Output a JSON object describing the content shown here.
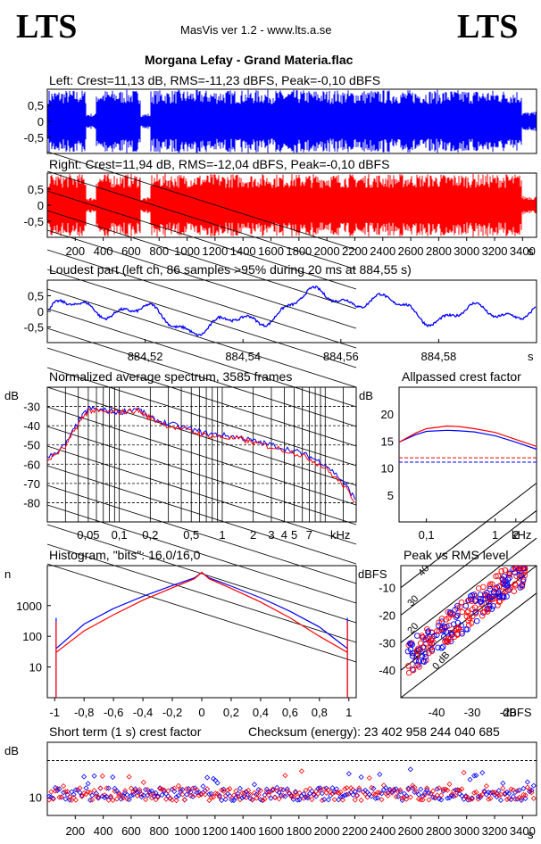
{
  "app": {
    "logo_left": "LTS",
    "logo_right": "LTS",
    "header": "MasVis ver 1.2 - www.lts.a.se",
    "track": "Morgana Lefay - Grand Materia.flac"
  },
  "colors": {
    "left": "#0000ff",
    "right": "#ff0000",
    "grid": "#000000"
  },
  "chart_data": [
    {
      "type": "area",
      "title": "Left: Crest=11,13 dB, RMS=-11,23 dBFS, Peak=-0,10 dBFS",
      "channel": "left",
      "ylim": [
        -1,
        1
      ],
      "ytick_labels": [
        "0,5",
        "0",
        "-0,5"
      ],
      "yticks": [
        0.5,
        0,
        -0.5
      ]
    },
    {
      "type": "area",
      "title": "Right: Crest=11,94 dB, RMS=-12,04 dBFS, Peak=-0,10 dBFS",
      "channel": "right",
      "ylim": [
        -1,
        1
      ],
      "ytick_labels": [
        "0,5",
        "0",
        "-0,5"
      ],
      "yticks": [
        0.5,
        0,
        -0.5
      ],
      "xlim": [
        0,
        3500
      ],
      "xtick_labels": [
        "200",
        "400",
        "600",
        "800",
        "1000",
        "1200",
        "1400",
        "1600",
        "1800",
        "2000",
        "2200",
        "2400",
        "2600",
        "2800",
        "3000",
        "3200",
        "3400"
      ],
      "xticks": [
        200,
        400,
        600,
        800,
        1000,
        1200,
        1400,
        1600,
        1800,
        2000,
        2200,
        2400,
        2600,
        2800,
        3000,
        3200,
        3400
      ],
      "xunit": "s"
    },
    {
      "type": "line",
      "title": "Loudest part (left  ch, 86 samples >95% during 20 ms at 884,55 s)",
      "xlim": [
        884.5,
        884.6
      ],
      "ylim": [
        -1,
        1
      ],
      "xtick_labels": [
        "884,52",
        "884,54",
        "884,56",
        "884,58"
      ],
      "xticks": [
        884.52,
        884.54,
        884.56,
        884.58
      ],
      "xunit": "s",
      "ytick_labels": [
        "0,5",
        "0",
        "-0,5"
      ],
      "yticks": [
        0.5,
        0,
        -0.5
      ]
    },
    {
      "type": "line",
      "title": "Normalized average spectrum, 3585 frames",
      "ylabel": "dB",
      "xunit": "kHz",
      "xscale": "log",
      "xlim": [
        0.02,
        20
      ],
      "ylim": [
        -90,
        -20
      ],
      "ytick_labels": [
        "-30",
        "-40",
        "-50",
        "-60",
        "-70",
        "-80"
      ],
      "yticks": [
        -30,
        -40,
        -50,
        -60,
        -70,
        -80
      ],
      "xtick_labels": [
        "0,05",
        "0,1",
        "0,2",
        "0,5",
        "1",
        "2",
        "3",
        "4",
        "5",
        "7"
      ],
      "xticks": [
        0.05,
        0.1,
        0.2,
        0.5,
        1,
        2,
        3,
        4,
        5,
        7
      ],
      "x": [
        0.02,
        0.03,
        0.04,
        0.05,
        0.07,
        0.1,
        0.15,
        0.2,
        0.3,
        0.5,
        0.7,
        1,
        1.5,
        2,
        3,
        5,
        7,
        10,
        15,
        20
      ],
      "series": [
        {
          "values": [
            -57,
            -50,
            -38,
            -31,
            -32,
            -33,
            -31,
            -36,
            -39,
            -42,
            -44,
            -45,
            -46,
            -48,
            -50,
            -53,
            -56,
            -60,
            -69,
            -79
          ]
        },
        {
          "values": [
            -58,
            -51,
            -39,
            -32,
            -33,
            -33,
            -32,
            -36,
            -40,
            -43,
            -45,
            -46,
            -47,
            -49,
            -51,
            -54,
            -57,
            -62,
            -71,
            -80
          ]
        }
      ]
    },
    {
      "type": "line",
      "title": "Allpassed crest factor",
      "ylabel": "dB",
      "xunit": "kHz",
      "xscale": "log",
      "xlim": [
        0.04,
        4
      ],
      "ylim": [
        0,
        25
      ],
      "ytick_labels": [
        "20",
        "15",
        "10",
        "5"
      ],
      "yticks": [
        20,
        15,
        10,
        5
      ],
      "xtick_labels": [
        "0,1",
        "1",
        "2"
      ],
      "xticks": [
        0.1,
        1,
        2
      ],
      "x": [
        0.04,
        0.07,
        0.1,
        0.2,
        0.3,
        0.5,
        1,
        2,
        4
      ],
      "series": [
        {
          "values": [
            14.8,
            16.2,
            16.8,
            17.0,
            16.9,
            16.7,
            16.0,
            14.8,
            13.5
          ]
        },
        {
          "values": [
            14.8,
            16.5,
            17.3,
            17.8,
            17.7,
            17.3,
            16.6,
            15.3,
            14.0
          ]
        }
      ],
      "hlines": [
        11.1,
        11.9
      ]
    },
    {
      "type": "line",
      "title": "Histogram, \"bits\": 16,0/16,0",
      "ylabel": "n",
      "yscale": "log",
      "ylim": [
        1,
        20000
      ],
      "ytick_labels": [
        "1000",
        "100",
        "10"
      ],
      "yticks": [
        1000,
        100,
        10
      ],
      "xlim": [
        -1.05,
        1.05
      ],
      "xtick_labels": [
        "-1",
        "-0,8",
        "-0,6",
        "-0,4",
        "-0,2",
        "0",
        "0,2",
        "0,4",
        "0,6",
        "0,8",
        "1"
      ],
      "xticks": [
        -1,
        -0.8,
        -0.6,
        -0.4,
        -0.2,
        0,
        0.2,
        0.4,
        0.6,
        0.8,
        1
      ],
      "x": [
        -0.99,
        -0.8,
        -0.6,
        -0.4,
        -0.2,
        -0.05,
        0,
        0.05,
        0.2,
        0.4,
        0.6,
        0.8,
        0.99
      ],
      "series": [
        {
          "values": [
            40,
            250,
            800,
            2000,
            4500,
            8000,
            12000,
            8000,
            4300,
            1800,
            650,
            200,
            40
          ]
        },
        {
          "values": [
            30,
            150,
            500,
            1500,
            3800,
            7500,
            12000,
            7500,
            3600,
            1300,
            400,
            100,
            30
          ]
        }
      ]
    },
    {
      "type": "scatter",
      "title": "Peak vs RMS level",
      "ylabel": "dBFS",
      "xunit": "dBFS",
      "xlim": [
        -50,
        -12
      ],
      "ylim": [
        -50,
        -2
      ],
      "xtick_labels": [
        "-40",
        "-30",
        "-20"
      ],
      "xticks": [
        -40,
        -30,
        -20
      ],
      "ytick_labels": [
        "-10",
        "-20",
        "-30",
        "-40"
      ],
      "yticks": [
        -10,
        -20,
        -30,
        -40
      ],
      "diagonal_labels": [
        "0 dB",
        "10",
        "20",
        "30",
        "40"
      ]
    },
    {
      "type": "scatter",
      "title": "Short term (1 s) crest factor",
      "checksum": "Checksum (energy):  23 402 958 244 040 685",
      "ylabel": "dB",
      "ylim": [
        5,
        25
      ],
      "ytick_labels": [
        "10"
      ],
      "yticks": [
        10
      ],
      "xlim": [
        0,
        3500
      ],
      "xtick_labels": [
        "200",
        "400",
        "600",
        "800",
        "1000",
        "1200",
        "1400",
        "1600",
        "1800",
        "2000",
        "2200",
        "2400",
        "2600",
        "2800",
        "3000",
        "3200",
        "3400"
      ],
      "xticks": [
        200,
        400,
        600,
        800,
        1000,
        1200,
        1400,
        1600,
        1800,
        2000,
        2200,
        2400,
        2600,
        2800,
        3000,
        3200,
        3400
      ],
      "xunit": "s",
      "refline": 20
    }
  ]
}
